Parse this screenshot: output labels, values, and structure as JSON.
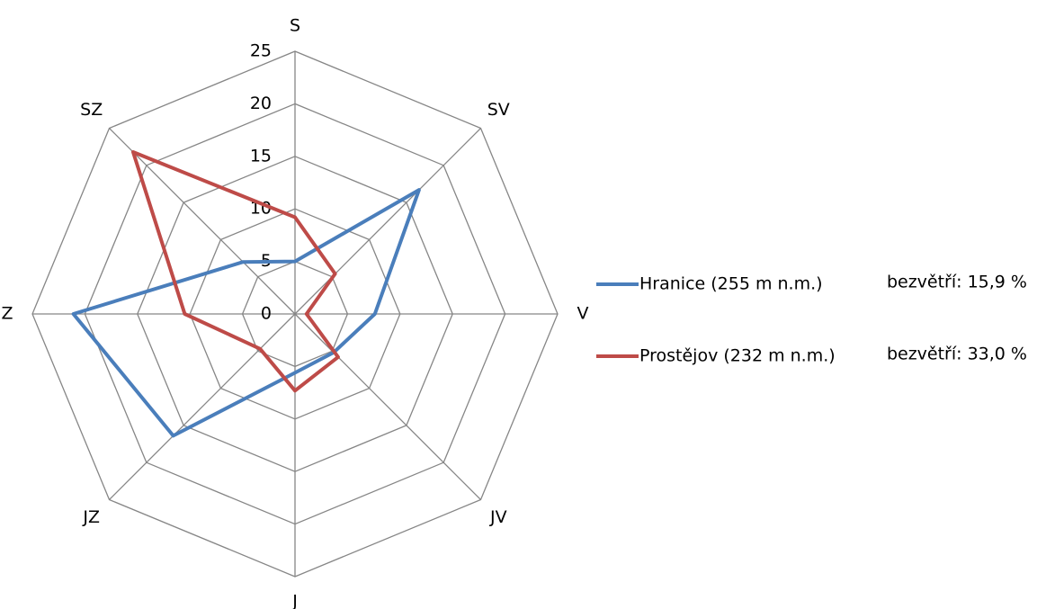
{
  "chart_data": {
    "type": "radar",
    "categories": [
      "S",
      "SV",
      "V",
      "JV",
      "J",
      "JZ",
      "Z",
      "SZ"
    ],
    "ylim": [
      0,
      25
    ],
    "yticks": [
      0,
      5,
      10,
      15,
      20,
      25
    ],
    "grid": true,
    "legend": "right",
    "series": [
      {
        "name": "Hranice (255 m n.m.)",
        "annotation": "bezvětří: 15,9 %",
        "color": "#4a7ebb",
        "values": [
          5.0,
          16.7,
          7.6,
          5.2,
          5.6,
          16.4,
          21.1,
          7.0
        ]
      },
      {
        "name": "Prostějov (232 m n.m.)",
        "annotation": "bezvětří: 33,0 %",
        "color": "#be4b48",
        "values": [
          9.2,
          5.4,
          1.1,
          5.8,
          7.3,
          4.7,
          10.5,
          21.8
        ]
      }
    ]
  }
}
